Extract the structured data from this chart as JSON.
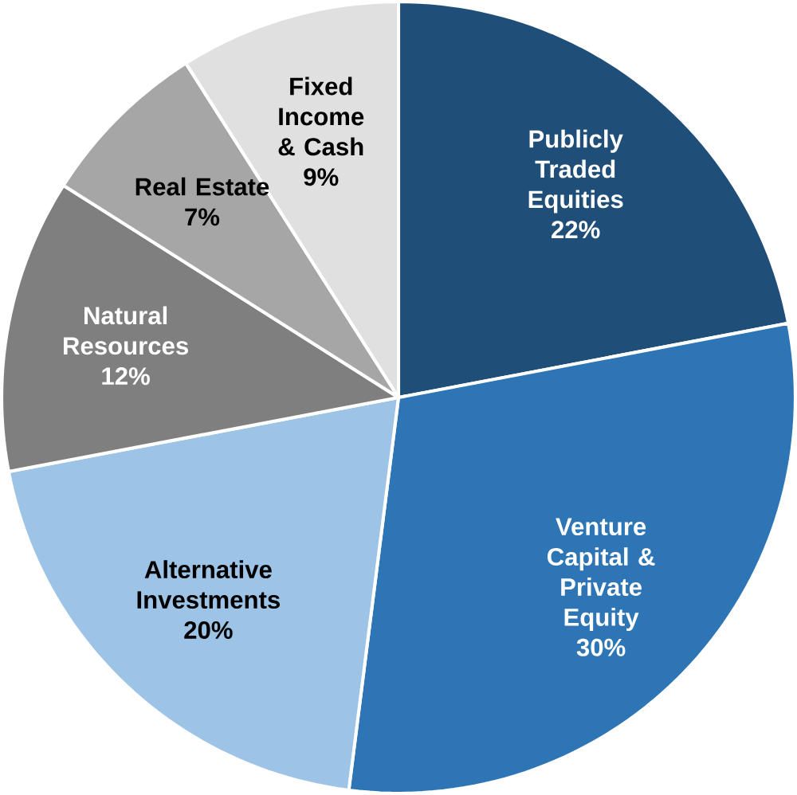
{
  "chart_data": {
    "type": "pie",
    "categories": [
      "Publicly Traded Equities",
      "Venture Capital & Private Equity",
      "Alternative Investments",
      "Natural Resources",
      "Real Estate",
      "Fixed Income & Cash"
    ],
    "values": [
      22,
      30,
      20,
      12,
      7,
      9
    ],
    "value_labels": [
      "22%",
      "30%",
      "20%",
      "12%",
      "7%",
      "9%"
    ],
    "colors": [
      "#1f4e79",
      "#2e75b6",
      "#9dc3e6",
      "#7f7f7f",
      "#a6a6a6",
      "#e0e0e0"
    ]
  }
}
